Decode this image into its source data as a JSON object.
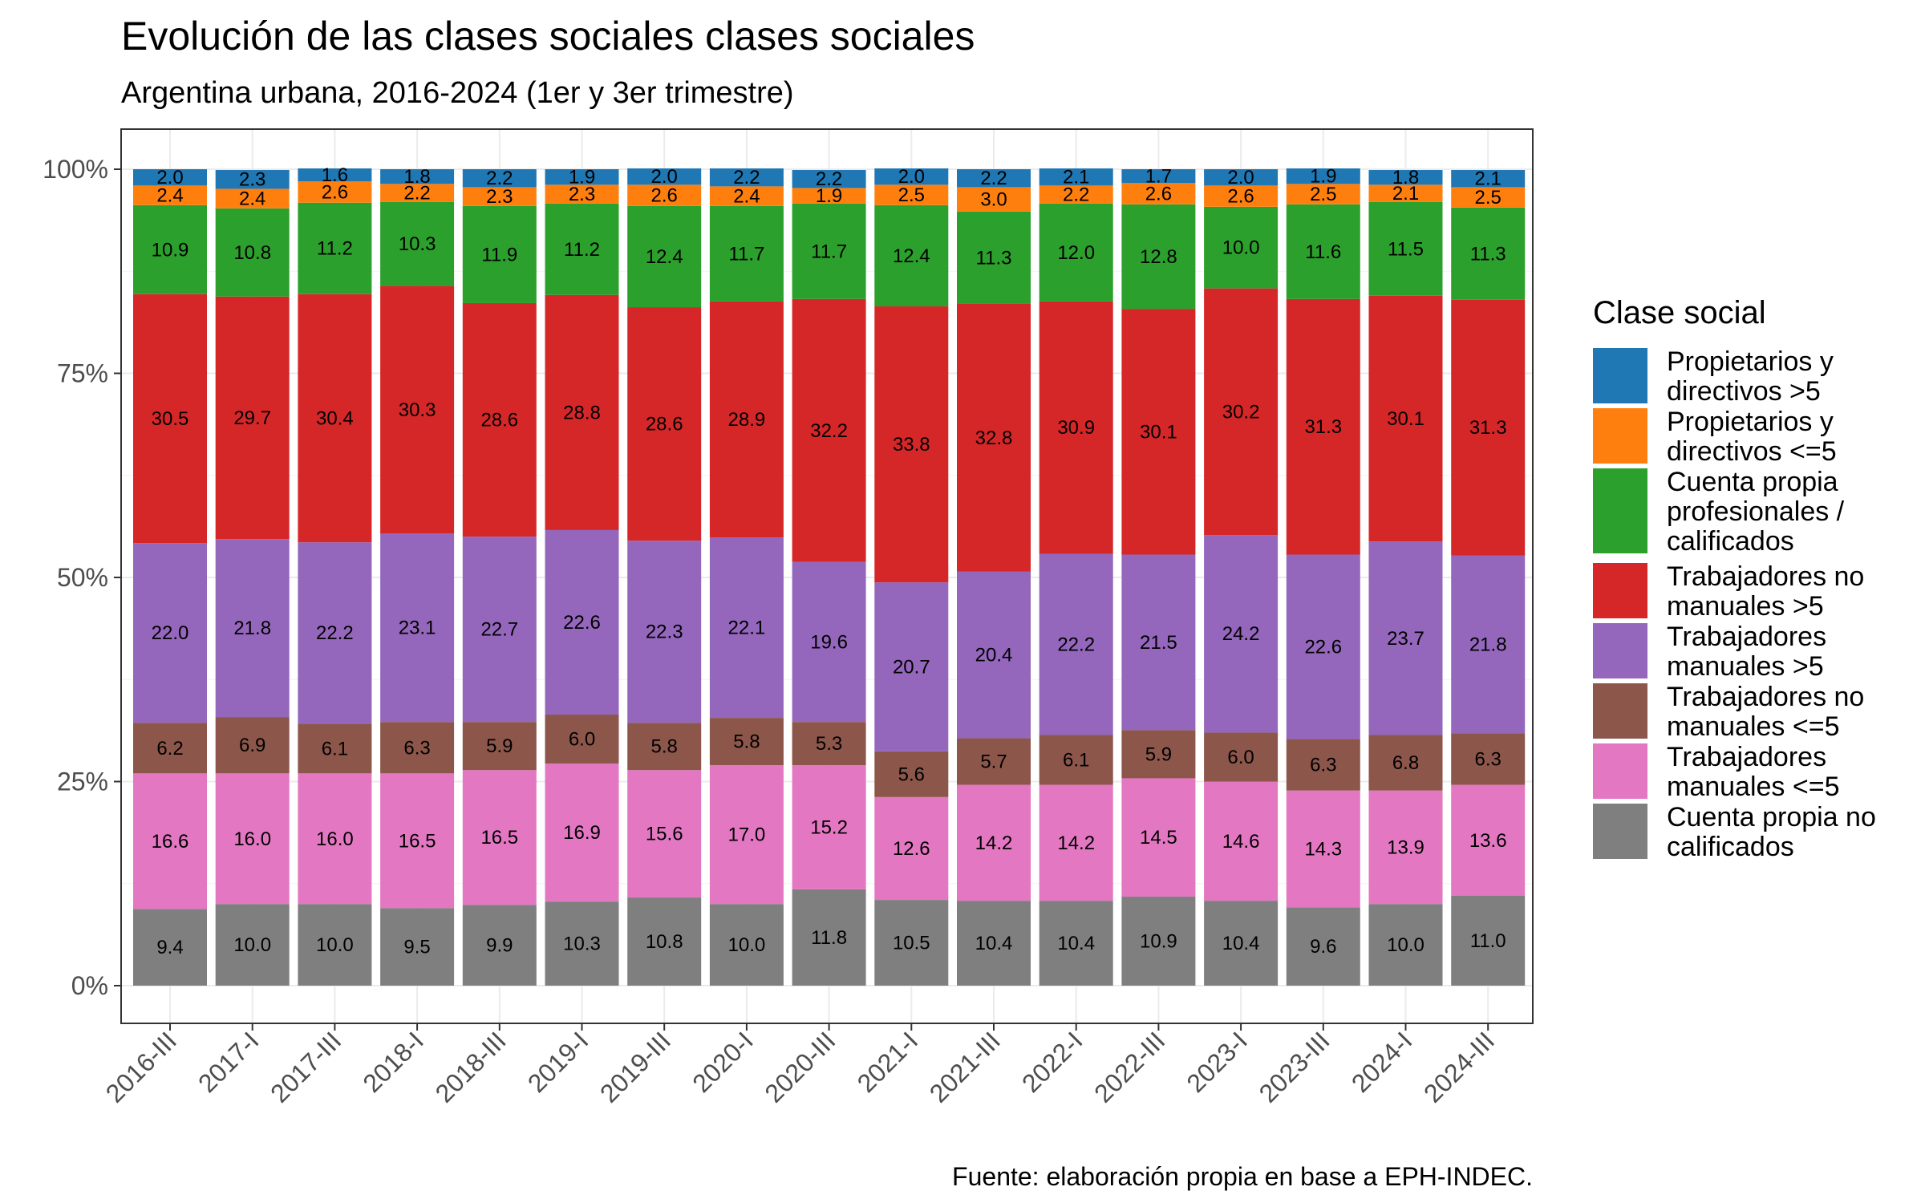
{
  "chart_data": {
    "type": "bar",
    "stacked": true,
    "normalized": true,
    "title": "Evolución de las clases sociales clases sociales",
    "subtitle": "Argentina urbana, 2016-2024 (1er y 3er trimestre)",
    "caption": "Fuente: elaboración propia en base a EPH-INDEC.",
    "legend_title": "Clase social",
    "legend_position": "right",
    "ylim": [
      0,
      100
    ],
    "yticks": [
      "0%",
      "25%",
      "50%",
      "75%",
      "100%"
    ],
    "grid": true,
    "categories": [
      "2016-III",
      "2017-I",
      "2017-III",
      "2018-I",
      "2018-III",
      "2019-I",
      "2019-III",
      "2020-I",
      "2020-III",
      "2021-I",
      "2021-III",
      "2022-I",
      "2022-III",
      "2023-I",
      "2023-III",
      "2024-I",
      "2024-III"
    ],
    "series": [
      {
        "name": "Cuenta propia no calificados",
        "color": "#7f7f7f",
        "values": [
          9.4,
          10.0,
          10.0,
          9.5,
          9.9,
          10.3,
          10.8,
          10.0,
          11.8,
          10.5,
          10.4,
          10.4,
          10.9,
          10.4,
          9.6,
          10.0,
          11.0
        ]
      },
      {
        "name": "Trabajadores manuales <=5",
        "color": "#e377c2",
        "values": [
          16.6,
          16.0,
          16.0,
          16.5,
          16.5,
          16.9,
          15.6,
          17.0,
          15.2,
          12.6,
          14.2,
          14.2,
          14.5,
          14.6,
          14.3,
          13.9,
          13.6
        ]
      },
      {
        "name": "Trabajadores no manuales <=5",
        "color": "#8c564b",
        "values": [
          6.2,
          6.9,
          6.1,
          6.3,
          5.9,
          6.0,
          5.8,
          5.8,
          5.3,
          5.6,
          5.7,
          6.1,
          5.9,
          6.0,
          6.3,
          6.8,
          6.3
        ]
      },
      {
        "name": "Trabajadores manuales >5",
        "color": "#9467bd",
        "values": [
          22.0,
          21.8,
          22.2,
          23.1,
          22.7,
          22.6,
          22.3,
          22.1,
          19.6,
          20.7,
          20.4,
          22.2,
          21.5,
          24.2,
          22.6,
          23.7,
          21.8
        ]
      },
      {
        "name": "Trabajadores no manuales >5",
        "color": "#d62728",
        "values": [
          30.5,
          29.7,
          30.4,
          30.3,
          28.6,
          28.8,
          28.6,
          28.9,
          32.2,
          33.8,
          32.8,
          30.9,
          30.1,
          30.2,
          31.3,
          30.1,
          31.3
        ]
      },
      {
        "name": "Cuenta propia profesionales / calificados",
        "color": "#2ca02c",
        "values": [
          10.9,
          10.8,
          11.2,
          10.3,
          11.9,
          11.2,
          12.4,
          11.7,
          11.7,
          12.4,
          11.3,
          12.0,
          12.8,
          10.0,
          11.6,
          11.5,
          11.3
        ]
      },
      {
        "name": "Propietarios y directivos <=5",
        "color": "#ff7f0e",
        "values": [
          2.4,
          2.4,
          2.6,
          2.2,
          2.3,
          2.3,
          2.6,
          2.4,
          1.9,
          2.5,
          3.0,
          2.2,
          2.6,
          2.6,
          2.5,
          2.1,
          2.5
        ]
      },
      {
        "name": "Propietarios y directivos >5",
        "color": "#1f77b4",
        "values": [
          2.0,
          2.3,
          1.6,
          1.8,
          2.2,
          1.9,
          2.0,
          2.2,
          2.2,
          2.0,
          2.2,
          2.1,
          1.7,
          2.0,
          1.9,
          1.8,
          2.1
        ]
      }
    ],
    "legend": [
      {
        "lines": [
          "Propietarios y",
          "directivos >5"
        ],
        "color": "#1f77b4"
      },
      {
        "lines": [
          "Propietarios y",
          "directivos <=5"
        ],
        "color": "#ff7f0e"
      },
      {
        "lines": [
          "Cuenta propia",
          "profesionales /",
          "calificados"
        ],
        "color": "#2ca02c"
      },
      {
        "lines": [
          "Trabajadores no",
          "manuales >5"
        ],
        "color": "#d62728"
      },
      {
        "lines": [
          "Trabajadores",
          "manuales >5"
        ],
        "color": "#9467bd"
      },
      {
        "lines": [
          "Trabajadores no",
          "manuales <=5"
        ],
        "color": "#8c564b"
      },
      {
        "lines": [
          "Trabajadores",
          "manuales <=5"
        ],
        "color": "#e377c2"
      },
      {
        "lines": [
          "Cuenta propia no",
          "calificados"
        ],
        "color": "#7f7f7f"
      }
    ]
  }
}
